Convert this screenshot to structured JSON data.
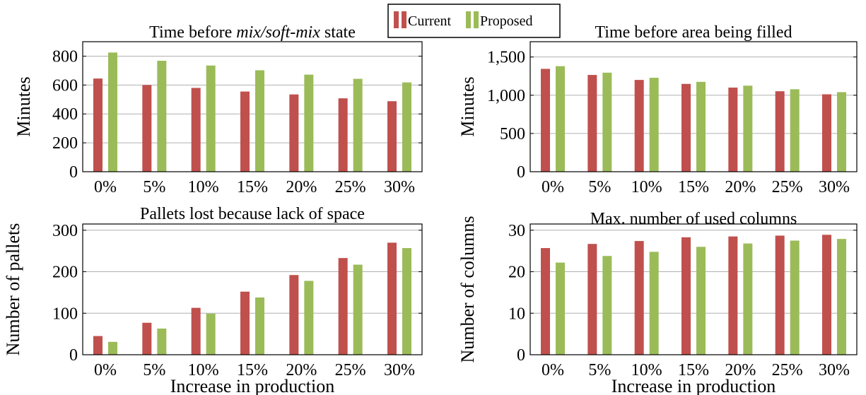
{
  "legend": {
    "items": [
      {
        "label": "Current",
        "color": "#c0504d"
      },
      {
        "label": "Proposed",
        "color": "#9bbb59"
      }
    ]
  },
  "chart_data": [
    {
      "type": "bar",
      "title_parts": [
        {
          "text": "Time before ",
          "italic": false
        },
        {
          "text": "mix/soft-mix",
          "italic": true
        },
        {
          "text": " state",
          "italic": false
        }
      ],
      "categories": [
        "0%",
        "5%",
        "10%",
        "15%",
        "20%",
        "25%",
        "30%"
      ],
      "series": [
        {
          "name": "Current",
          "values": [
            645,
            600,
            580,
            555,
            535,
            508,
            488
          ]
        },
        {
          "name": "Proposed",
          "values": [
            825,
            768,
            735,
            702,
            672,
            643,
            618
          ]
        }
      ],
      "xlabel": "",
      "ylabel": "Minutes",
      "ylim": [
        0,
        900
      ],
      "yticks": [
        0,
        200,
        400,
        600,
        800
      ],
      "ytick_labels": [
        "0",
        "200",
        "400",
        "600",
        "800"
      ],
      "grid": true
    },
    {
      "type": "bar",
      "title_parts": [
        {
          "text": "Time before area being filled",
          "italic": false
        }
      ],
      "categories": [
        "0%",
        "5%",
        "10%",
        "15%",
        "20%",
        "25%",
        "30%"
      ],
      "series": [
        {
          "name": "Current",
          "values": [
            1345,
            1265,
            1200,
            1148,
            1100,
            1052,
            1012
          ]
        },
        {
          "name": "Proposed",
          "values": [
            1380,
            1295,
            1228,
            1175,
            1125,
            1078,
            1040
          ]
        }
      ],
      "xlabel": "",
      "ylabel": "Minutes",
      "ylim": [
        0,
        1700
      ],
      "yticks": [
        0,
        500,
        1000,
        1500
      ],
      "ytick_labels": [
        "0",
        "500",
        "1,000",
        "1,500"
      ],
      "grid": true
    },
    {
      "type": "bar",
      "title_parts": [
        {
          "text": "Pallets lost because lack of space",
          "italic": false
        }
      ],
      "categories": [
        "0%",
        "5%",
        "10%",
        "15%",
        "20%",
        "25%",
        "30%"
      ],
      "series": [
        {
          "name": "Current",
          "values": [
            45,
            77,
            113,
            152,
            192,
            233,
            270
          ]
        },
        {
          "name": "Proposed",
          "values": [
            31,
            63,
            99,
            138,
            178,
            217,
            257
          ]
        }
      ],
      "xlabel": "Increase in production",
      "ylabel": "Number of pallets",
      "ylim": [
        0,
        315
      ],
      "yticks": [
        0,
        100,
        200,
        300
      ],
      "ytick_labels": [
        "0",
        "100",
        "200",
        "300"
      ],
      "grid": true
    },
    {
      "type": "bar",
      "title_parts": [
        {
          "text": "Max. number of used columns",
          "italic": false
        }
      ],
      "categories": [
        "0%",
        "5%",
        "10%",
        "15%",
        "20%",
        "25%",
        "30%"
      ],
      "series": [
        {
          "name": "Current",
          "values": [
            25.7,
            26.7,
            27.4,
            28.3,
            28.5,
            28.7,
            28.9
          ]
        },
        {
          "name": "Proposed",
          "values": [
            22.2,
            23.8,
            24.8,
            26.0,
            26.8,
            27.5,
            27.9
          ]
        }
      ],
      "xlabel": "Increase in production",
      "ylabel": "Number of columns",
      "ylim": [
        0,
        31.5
      ],
      "yticks": [
        0,
        10,
        20,
        30
      ],
      "ytick_labels": [
        "0",
        "10",
        "20",
        "30"
      ],
      "grid": true
    }
  ]
}
